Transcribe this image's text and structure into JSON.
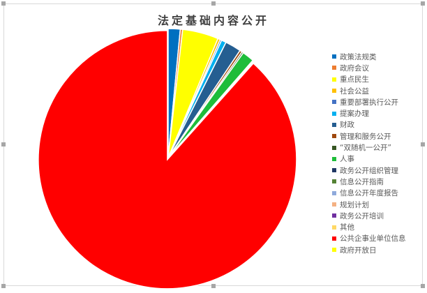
{
  "chart_data": {
    "type": "pie",
    "title": "法定基础内容公开",
    "legend_position": "right",
    "exploded_slice": "公共企事业单位信息",
    "slices": [
      {
        "label": "政策法规类",
        "value": 1.5,
        "color": "#0070c0"
      },
      {
        "label": "政府会议",
        "value": 0.3,
        "color": "#ed7d31"
      },
      {
        "label": "重点民生",
        "value": 4.5,
        "color": "#ffff00"
      },
      {
        "label": "社会公益",
        "value": 0.3,
        "color": "#ffc000"
      },
      {
        "label": "重要部署执行公开",
        "value": 0.2,
        "color": "#4472c4"
      },
      {
        "label": "提案办理",
        "value": 0.6,
        "color": "#00b0f0"
      },
      {
        "label": "财政",
        "value": 2.0,
        "color": "#255e91"
      },
      {
        "label": "管理和服务公开",
        "value": 0.3,
        "color": "#9e480e"
      },
      {
        "label": "“双随机一公开”",
        "value": 0.2,
        "color": "#375623"
      },
      {
        "label": "人事",
        "value": 1.5,
        "color": "#1ebd3a"
      },
      {
        "label": "政务公开组织管理",
        "value": 0.05,
        "color": "#203864"
      },
      {
        "label": "信息公开指南",
        "value": 0.05,
        "color": "#548235"
      },
      {
        "label": "信息公开年度报告",
        "value": 0.05,
        "color": "#8faadc"
      },
      {
        "label": "规划计划",
        "value": 0.05,
        "color": "#f4b183"
      },
      {
        "label": "政务公开培训",
        "value": 0.0,
        "color": "#7030a0"
      },
      {
        "label": "其他",
        "value": 0.0,
        "color": "#ffd966"
      },
      {
        "label": "公共企事业单位信息",
        "value": 88.4,
        "color": "#ff0000"
      },
      {
        "label": "政府开放日",
        "value": 0.0,
        "color": "#ffff00"
      }
    ]
  }
}
